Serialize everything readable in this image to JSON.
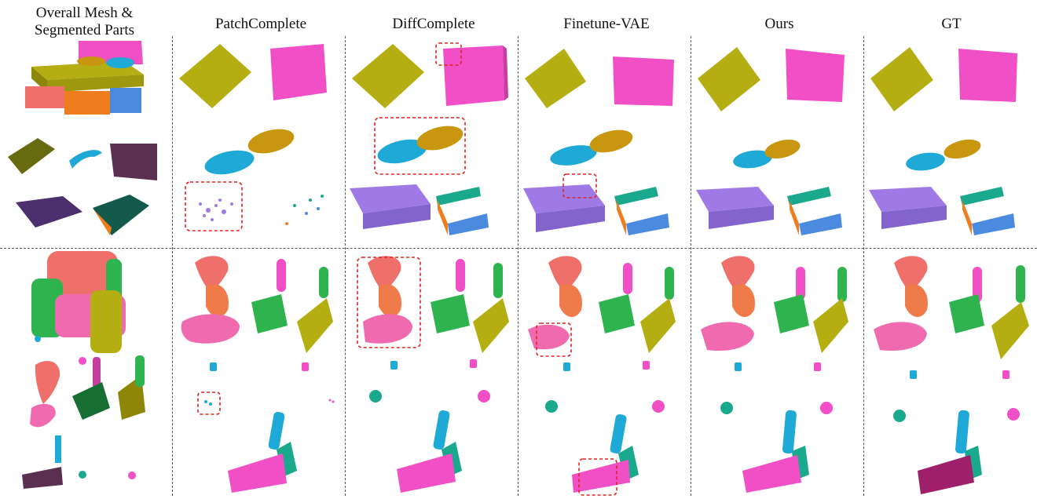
{
  "figure": {
    "columns": [
      {
        "id": "input",
        "title_line1": "Overall Mesh &",
        "title_line2": "Segmented Parts"
      },
      {
        "id": "patchcomplete",
        "title": "PatchComplete"
      },
      {
        "id": "diffcomplete",
        "title": "DiffComplete"
      },
      {
        "id": "finetune-vae",
        "title": "Finetune-VAE"
      },
      {
        "id": "ours",
        "title": "Ours"
      },
      {
        "id": "gt",
        "title": "GT"
      }
    ],
    "rows": [
      "bed",
      "armchair"
    ],
    "colors": {
      "olive": "#b5ae12",
      "pink": "#f04fc6",
      "cyan": "#1fa9d6",
      "gold": "#c9960f",
      "lavender": "#9f7ae6",
      "teal": "#1aa98c",
      "orange": "#ef7d1e",
      "blue": "#4a8be0",
      "salmon": "#ef6f6b",
      "green": "#2fb34e",
      "magenta": "#f24ec0",
      "highlight_box": "#e0241f",
      "divider": "#555555"
    }
  }
}
